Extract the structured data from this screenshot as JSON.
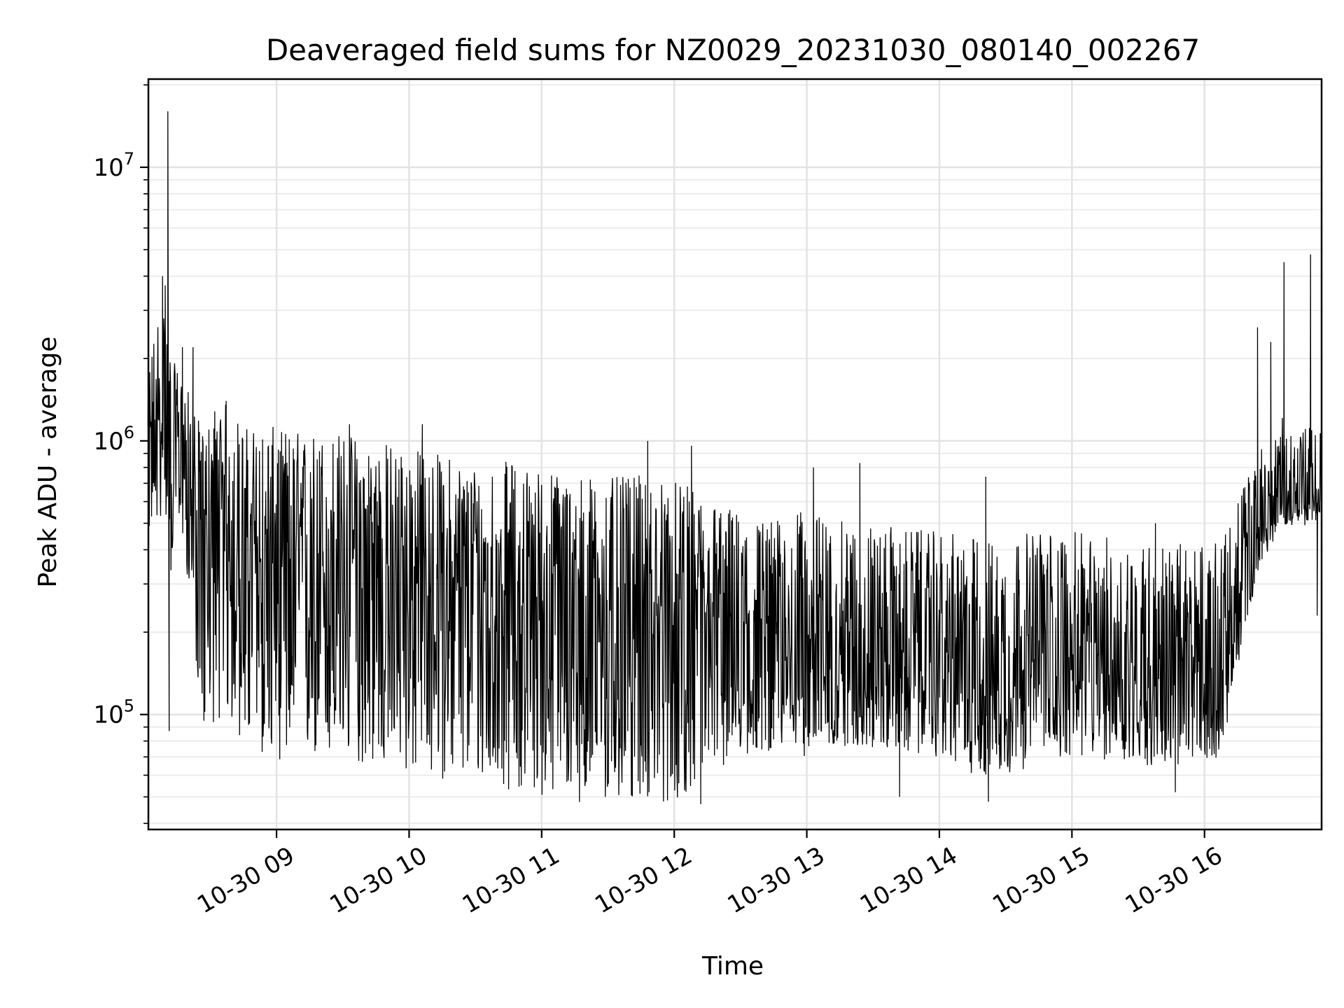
{
  "chart_data": {
    "type": "line",
    "title": "Deaveraged field sums for NZ0029_20231030_080140_002267",
    "xlabel": "Time",
    "ylabel": "Peak ADU - average",
    "yscale": "log",
    "grid": true,
    "xlim": [
      "2023-10-30 08:02",
      "2023-10-30 16:53"
    ],
    "ylim": [
      38000,
      21000000
    ],
    "x_ticks": [
      "10-30 09",
      "10-30 10",
      "10-30 11",
      "10-30 12",
      "10-30 13",
      "10-30 14",
      "10-30 15",
      "10-30 16"
    ],
    "y_ticks": [
      {
        "base": "10",
        "exp": "5",
        "value": 100000
      },
      {
        "base": "10",
        "exp": "6",
        "value": 1000000
      },
      {
        "base": "10",
        "exp": "7",
        "value": 10000000
      }
    ],
    "line_color": "#000000",
    "series": [
      {
        "x_hours": [
          8.03,
          8.1,
          8.17,
          8.2,
          8.24,
          8.3,
          8.37,
          8.45,
          8.55,
          8.65,
          8.75,
          8.85,
          9.0,
          9.25,
          9.5,
          9.75,
          10.0,
          10.25,
          10.5,
          10.75,
          11.0,
          11.25,
          11.5,
          11.75,
          12.0,
          12.25,
          12.5,
          12.75,
          13.0,
          13.25,
          13.5,
          13.75,
          14.0,
          14.25,
          14.5,
          14.75,
          15.0,
          15.25,
          15.5,
          15.75,
          16.0,
          16.1,
          16.2,
          16.3,
          16.4,
          16.5,
          16.6,
          16.7,
          16.8,
          16.88
        ],
        "base_values": [
          900000,
          1000000,
          1300000,
          1000000,
          950000,
          850000,
          600000,
          420000,
          480000,
          450000,
          380000,
          360000,
          340000,
          330000,
          330000,
          320000,
          300000,
          290000,
          280000,
          265000,
          250000,
          240000,
          230000,
          220000,
          210000,
          200000,
          195000,
          185000,
          175000,
          170000,
          165000,
          160000,
          155000,
          150000,
          145000,
          150000,
          155000,
          150000,
          145000,
          140000,
          145000,
          140000,
          170000,
          280000,
          420000,
          520000,
          620000,
          600000,
          620000,
          650000
        ],
        "spread_low": [
          0.5,
          0.5,
          0.4,
          0.3,
          0.5,
          0.5,
          0.3,
          0.2,
          0.2,
          0.2,
          0.2,
          0.2,
          0.2,
          0.2,
          0.2,
          0.2,
          0.2,
          0.2,
          0.2,
          0.2,
          0.2,
          0.2,
          0.2,
          0.22,
          0.22,
          0.3,
          0.35,
          0.4,
          0.4,
          0.45,
          0.45,
          0.45,
          0.45,
          0.4,
          0.4,
          0.45,
          0.45,
          0.45,
          0.45,
          0.45,
          0.45,
          0.5,
          0.6,
          0.7,
          0.75,
          0.8,
          0.8,
          0.8,
          0.8,
          0.8
        ],
        "spread_high": [
          2.0,
          3.0,
          2.5,
          2.0,
          2.0,
          2.0,
          2.2,
          2.5,
          3.0,
          3.0,
          3.0,
          3.2,
          3.3,
          3.3,
          3.3,
          3.2,
          3.2,
          3.1,
          3.0,
          3.2,
          3.2,
          3.2,
          3.2,
          3.4,
          3.4,
          3.2,
          2.8,
          2.8,
          3.2,
          3.0,
          3.0,
          3.0,
          3.0,
          3.0,
          3.0,
          3.2,
          3.0,
          3.0,
          3.0,
          3.0,
          3.0,
          3.0,
          3.0,
          2.5,
          2.2,
          2.0,
          2.0,
          1.9,
          1.8,
          1.7
        ],
        "spikes": [
          {
            "x_hour": 8.18,
            "value": 16000000
          },
          {
            "x_hour": 8.19,
            "value": 87000
          },
          {
            "x_hour": 8.14,
            "value": 4000000
          },
          {
            "x_hour": 8.16,
            "value": 3700000
          },
          {
            "x_hour": 8.37,
            "value": 2200000
          },
          {
            "x_hour": 8.29,
            "value": 2200000
          },
          {
            "x_hour": 8.62,
            "value": 1400000
          },
          {
            "x_hour": 9.55,
            "value": 1150000
          },
          {
            "x_hour": 10.1,
            "value": 1150000
          },
          {
            "x_hour": 11.8,
            "value": 1000000
          },
          {
            "x_hour": 12.13,
            "value": 960000
          },
          {
            "x_hour": 11.48,
            "value": 50000
          },
          {
            "x_hour": 12.2,
            "value": 47000
          },
          {
            "x_hour": 13.05,
            "value": 800000
          },
          {
            "x_hour": 13.4,
            "value": 830000
          },
          {
            "x_hour": 13.7,
            "value": 50000
          },
          {
            "x_hour": 14.37,
            "value": 48000
          },
          {
            "x_hour": 14.35,
            "value": 740000
          },
          {
            "x_hour": 15.63,
            "value": 500000
          },
          {
            "x_hour": 15.78,
            "value": 52000
          },
          {
            "x_hour": 16.4,
            "value": 2600000
          },
          {
            "x_hour": 16.5,
            "value": 2300000
          },
          {
            "x_hour": 16.6,
            "value": 4500000
          },
          {
            "x_hour": 16.8,
            "value": 4800000
          },
          {
            "x_hour": 16.85,
            "value": 230000
          }
        ]
      }
    ]
  }
}
